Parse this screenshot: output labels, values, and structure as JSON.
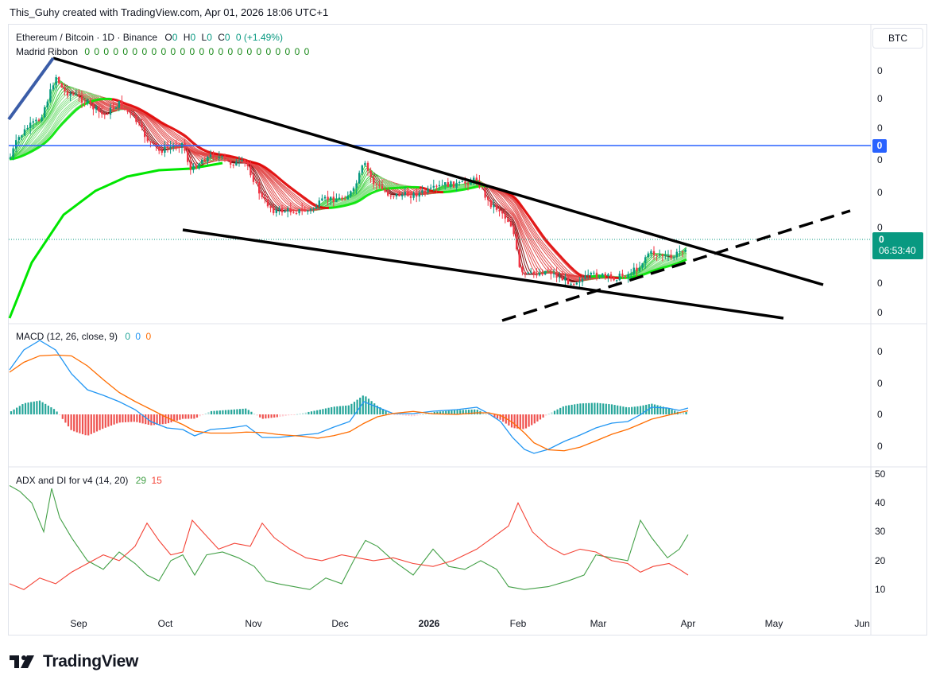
{
  "header": {
    "caption": "This_Guhy created with TradingView.com, Apr 01, 2026 18:06 UTC+1"
  },
  "symbol": {
    "name": "Ethereum / Bitcoin · 1D · Binance",
    "open_label": "O",
    "open": "0",
    "high_label": "H",
    "high": "0",
    "low_label": "L",
    "low": "0",
    "close_label": "C",
    "close": "0",
    "change": "0 (+1.49%)"
  },
  "ribbon": {
    "name": "Madrid Ribbon",
    "values": "0 0 0 0 0 0 0 0 0 0 0 0 0 0 0 0 0 0 0 0 0 0 0 0"
  },
  "currency_button": "BTC",
  "price_axis": {
    "labels": [
      "0",
      "0",
      "0",
      "0",
      "0",
      "0",
      "0",
      "0",
      "0"
    ],
    "hline_badge": "0",
    "last_price": "0",
    "countdown": "06:53:40"
  },
  "macd": {
    "name": "MACD (12, 26, close, 9)",
    "hist": "0",
    "macd": "0",
    "signal": "0",
    "axis_labels": [
      "0",
      "0",
      "0",
      "0"
    ]
  },
  "adx": {
    "name": "ADX and DI for v4 (14, 20)",
    "di_plus": "29",
    "di_minus": "15",
    "axis_labels": [
      "50",
      "40",
      "30",
      "20",
      "10"
    ]
  },
  "time_axis": [
    {
      "label": "Sep",
      "bold": false
    },
    {
      "label": "Oct",
      "bold": false
    },
    {
      "label": "Nov",
      "bold": false
    },
    {
      "label": "Dec",
      "bold": false
    },
    {
      "label": "2026",
      "bold": true
    },
    {
      "label": "Feb",
      "bold": false
    },
    {
      "label": "Mar",
      "bold": false
    },
    {
      "label": "Apr",
      "bold": false
    },
    {
      "label": "May",
      "bold": false
    },
    {
      "label": "Jun",
      "bold": false
    }
  ],
  "brand": {
    "name": "TradingView"
  },
  "colors": {
    "up": "#089981",
    "down": "#f23645",
    "macd": "#2196f3",
    "signal": "#ff6d00",
    "hline": "#2962ff",
    "ribbon_up": "#00e600",
    "ribbon_down": "#e00000",
    "di_plus": "#43a047",
    "di_minus": "#f44336"
  },
  "chart_data": [
    {
      "type": "candlestick",
      "title": "Ethereum / Bitcoin · 1D · Binance",
      "x_range": [
        "2025-08-07",
        "2026-06-01"
      ],
      "last_bar": "2026-04-01",
      "y_labels_note": "price axis labels rendered as 0",
      "overlays": [
        "Madrid Ribbon",
        "descending wedge upper trendline",
        "descending wedge lower trendline",
        "dashed rising support line",
        "horizontal level"
      ],
      "close_monthly_approx": [
        {
          "x": "2025-08-25",
          "close": 0.041
        },
        {
          "x": "2025-09-15",
          "close": 0.0385
        },
        {
          "x": "2025-10-01",
          "close": 0.0365
        },
        {
          "x": "2025-10-15",
          "close": 0.036
        },
        {
          "x": "2025-11-01",
          "close": 0.0355
        },
        {
          "x": "2025-11-20",
          "close": 0.0335
        },
        {
          "x": "2025-12-10",
          "close": 0.035
        },
        {
          "x": "2026-01-01",
          "close": 0.034
        },
        {
          "x": "2026-01-20",
          "close": 0.0345
        },
        {
          "x": "2026-02-05",
          "close": 0.0295
        },
        {
          "x": "2026-03-01",
          "close": 0.0285
        },
        {
          "x": "2026-03-20",
          "close": 0.03
        },
        {
          "x": "2026-04-01",
          "close": 0.031
        }
      ]
    },
    {
      "type": "line",
      "title": "MACD (12, 26, close, 9)",
      "series": [
        {
          "name": "MACD",
          "values": [
            0.0008,
            0.0016,
            0.0006,
            -0.0002,
            -0.0005,
            -0.0004,
            0.0001,
            0.0,
            -0.0003,
            -0.0011,
            -0.0007,
            0.0001,
            0.0003
          ]
        },
        {
          "name": "Signal",
          "values": [
            0.0007,
            0.0014,
            0.0008,
            0.0001,
            -0.0003,
            -0.0004,
            -0.0001,
            0.0,
            -0.0001,
            -0.0009,
            -0.0008,
            -0.0001,
            0.0002
          ]
        }
      ]
    },
    {
      "type": "line",
      "title": "ADX and DI for v4 (14, 20)",
      "ylim": [
        5,
        50
      ],
      "series": [
        {
          "name": "DI+",
          "values": [
            46,
            30,
            24,
            15,
            20,
            12,
            26,
            22,
            24,
            10,
            19,
            36,
            29
          ]
        },
        {
          "name": "DI-",
          "values": [
            15,
            20,
            33,
            28,
            24,
            30,
            18,
            20,
            19,
            41,
            22,
            19,
            15
          ]
        }
      ]
    }
  ]
}
